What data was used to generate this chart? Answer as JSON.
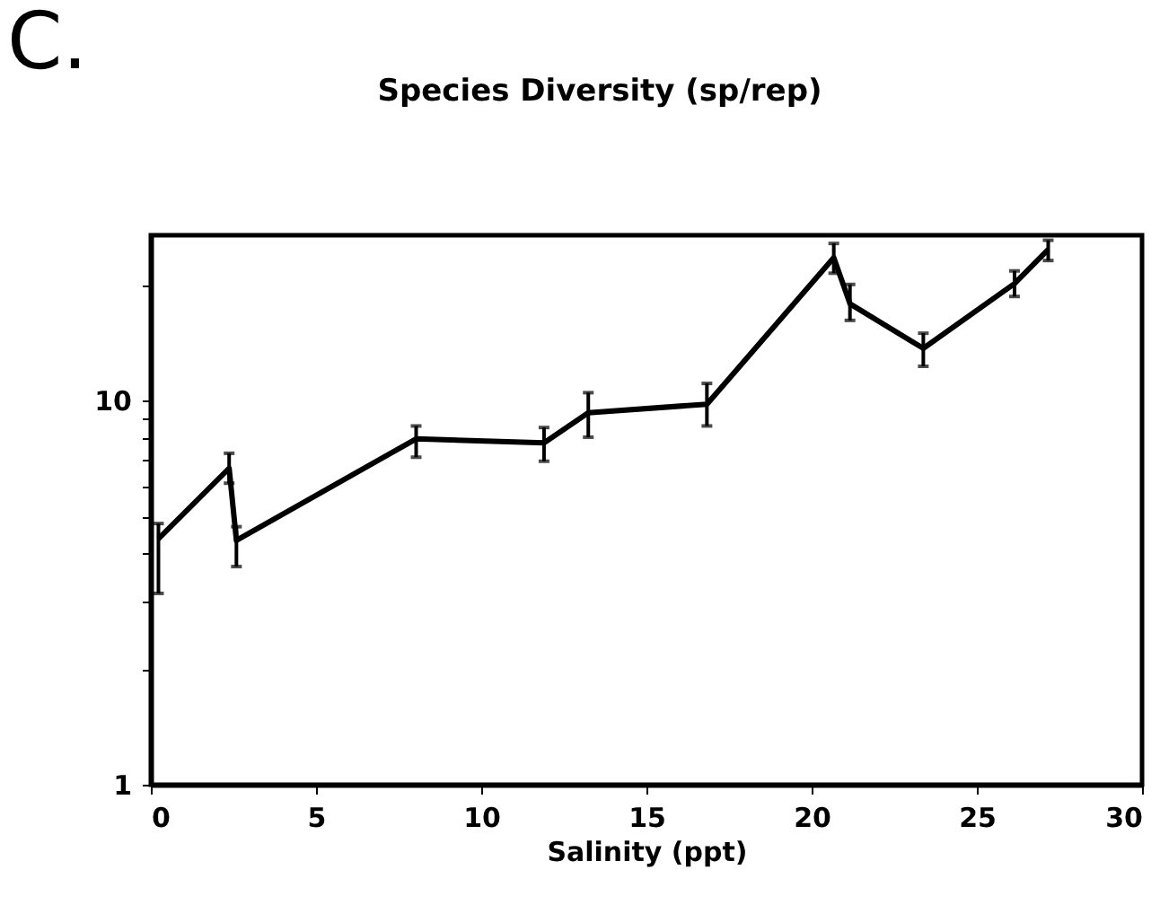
{
  "chart_data": {
    "type": "line",
    "title": "Species Diversity (sp/rep)",
    "xlabel": "Salinity (ppt)",
    "annotations": [
      "C."
    ],
    "x": [
      0.23,
      2.37,
      2.59,
      8.03,
      11.9,
      13.24,
      16.83,
      20.67,
      21.16,
      23.38,
      26.14,
      27.16
    ],
    "series": [
      {
        "color": "#000000",
        "values": [
          4.37,
          6.67,
          4.33,
          7.96,
          7.77,
          9.31,
          9.8,
          23.6,
          17.9,
          13.7,
          20.2,
          24.8
        ],
        "errors": [
          [
            3.15,
            4.79
          ],
          [
            6.1,
            7.3
          ],
          [
            3.7,
            4.7
          ],
          [
            7.13,
            8.6
          ],
          [
            6.96,
            8.52
          ],
          [
            8.04,
            10.5
          ],
          [
            8.6,
            11.1
          ],
          [
            21.5,
            25.7
          ],
          [
            16.2,
            20.1
          ],
          [
            12.3,
            15.0
          ],
          [
            18.7,
            21.8
          ],
          [
            23.2,
            26.2
          ]
        ]
      }
    ],
    "xlim": [
      0,
      30
    ],
    "xticks": [
      0,
      5,
      10,
      15,
      20,
      25,
      30
    ],
    "ylim": [
      1,
      27
    ],
    "yticks": [
      1,
      {
        "value": 2,
        "label": null
      },
      {
        "value": 3,
        "label": null
      },
      {
        "value": 4,
        "label": null
      },
      {
        "value": 5,
        "label": null
      },
      {
        "value": 6,
        "label": null
      },
      {
        "value": 7,
        "label": null
      },
      {
        "value": 8,
        "label": null
      },
      {
        "value": 9,
        "label": null
      },
      10,
      {
        "value": 20,
        "label": null
      }
    ],
    "log": true,
    "grid": false,
    "marker": "none",
    "line_style": "solid"
  }
}
